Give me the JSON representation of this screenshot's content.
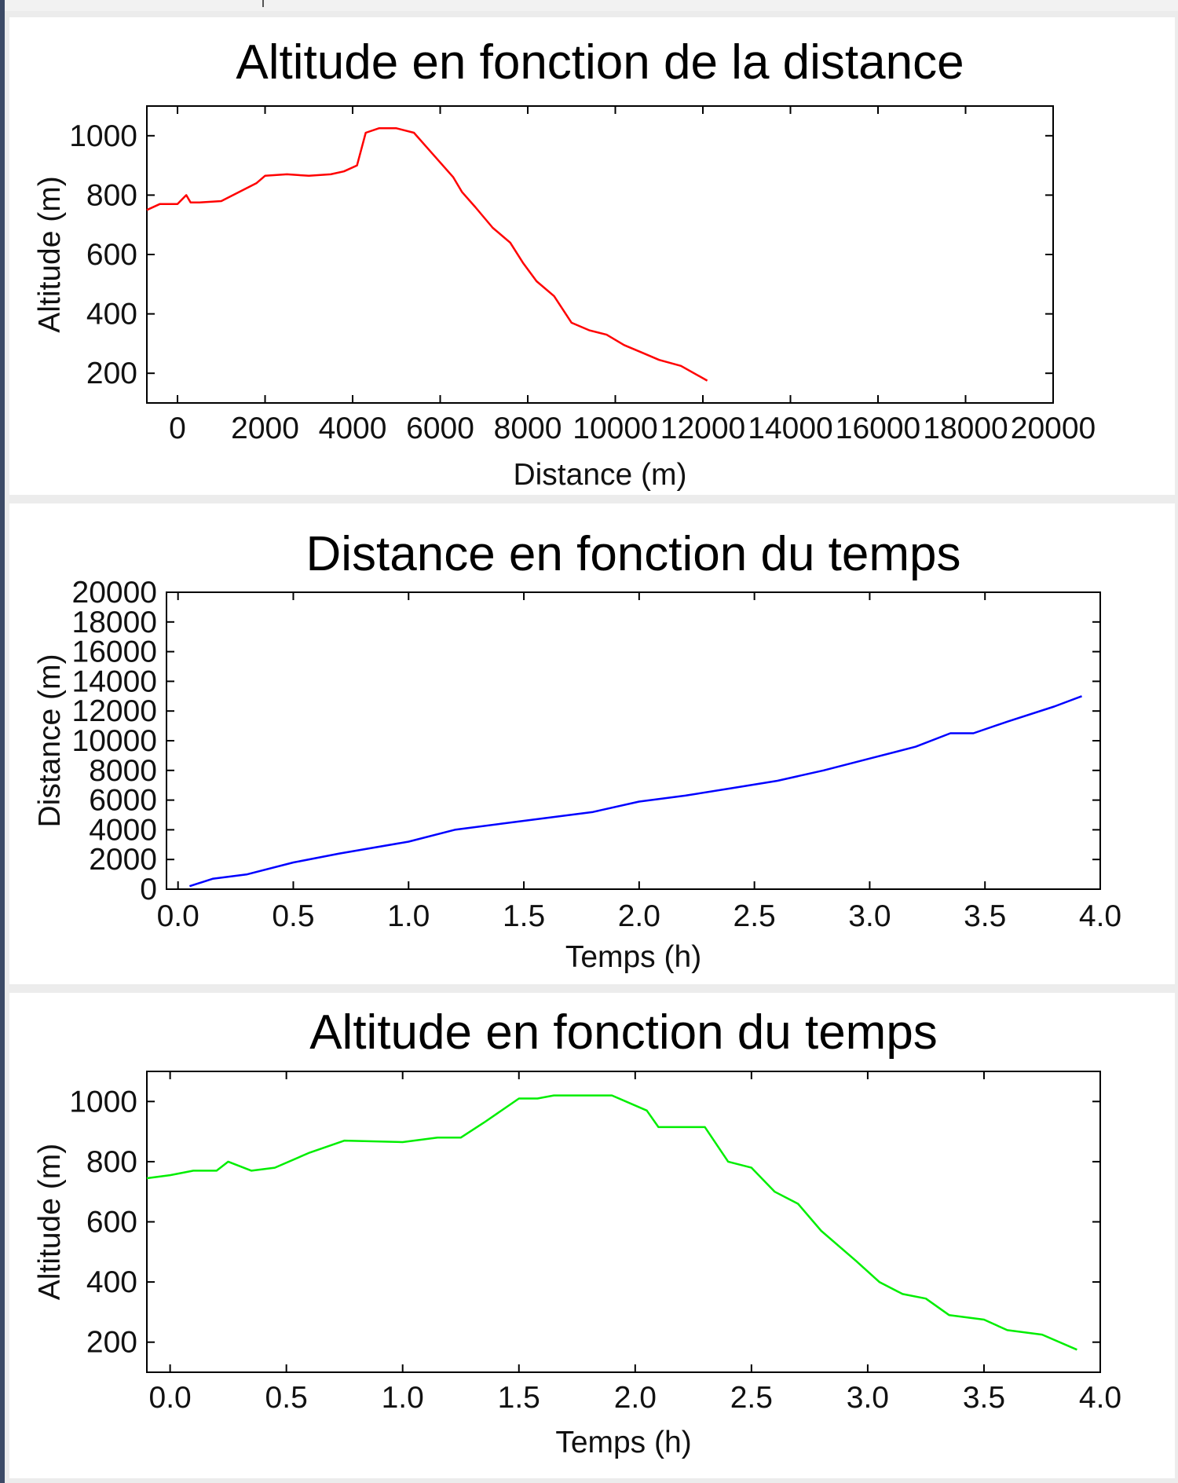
{
  "chart_data": [
    {
      "type": "line",
      "title": "Altitude en fonction de la distance",
      "xlabel": "Distance (m)",
      "ylabel": "Altitude (m)",
      "xlim": [
        -700,
        20000
      ],
      "ylim": [
        100,
        1100
      ],
      "xticks": [
        0,
        2000,
        4000,
        6000,
        8000,
        10000,
        12000,
        14000,
        16000,
        18000,
        20000
      ],
      "xtick_labels": [
        "0",
        "2000",
        "4000",
        "6000",
        "8000",
        "10000",
        "12000",
        "14000",
        "16000",
        "18000",
        "20000"
      ],
      "yticks": [
        200,
        400,
        600,
        800,
        1000
      ],
      "ytick_labels": [
        "200",
        "400",
        "600",
        "800",
        "1000"
      ],
      "grid": false,
      "color": "#ff0000",
      "series": [
        {
          "x": [
            -700,
            -400,
            0,
            200,
            300,
            500,
            1000,
            1400,
            1800,
            2000,
            2500,
            3000,
            3500,
            3800,
            4100,
            4300,
            4600,
            5000,
            5400,
            5700,
            6000,
            6300,
            6500,
            6800,
            7200,
            7600,
            7900,
            8200,
            8600,
            9000,
            9400,
            9800,
            10200,
            10600,
            11000,
            11500,
            12100
          ],
          "y": [
            750,
            770,
            770,
            800,
            775,
            775,
            780,
            810,
            840,
            865,
            870,
            865,
            870,
            880,
            900,
            1010,
            1025,
            1025,
            1010,
            960,
            910,
            860,
            810,
            760,
            690,
            640,
            570,
            510,
            460,
            370,
            345,
            330,
            295,
            270,
            245,
            225,
            175
          ]
        }
      ]
    },
    {
      "type": "line",
      "title": "Distance en fonction du temps",
      "xlabel": "Temps (h)",
      "ylabel": "Distance (m)",
      "xlim": [
        -0.05,
        4.0
      ],
      "ylim": [
        0,
        20000
      ],
      "xticks": [
        0.0,
        0.5,
        1.0,
        1.5,
        2.0,
        2.5,
        3.0,
        3.5,
        4.0
      ],
      "xtick_labels": [
        "0.0",
        "0.5",
        "1.0",
        "1.5",
        "2.0",
        "2.5",
        "3.0",
        "3.5",
        "4.0"
      ],
      "yticks": [
        0,
        2000,
        4000,
        6000,
        8000,
        10000,
        12000,
        14000,
        16000,
        18000,
        20000
      ],
      "ytick_labels": [
        "0",
        "2000",
        "4000",
        "6000",
        "8000",
        "10000",
        "12000",
        "14000",
        "16000",
        "18000",
        "20000"
      ],
      "grid": false,
      "color": "#0000ff",
      "series": [
        {
          "x": [
            0.05,
            0.15,
            0.3,
            0.5,
            0.7,
            1.0,
            1.2,
            1.4,
            1.6,
            1.8,
            2.0,
            2.2,
            2.4,
            2.6,
            2.8,
            3.0,
            3.2,
            3.35,
            3.45,
            3.6,
            3.8,
            3.92
          ],
          "y": [
            200,
            700,
            1000,
            1800,
            2400,
            3200,
            4000,
            4400,
            4800,
            5200,
            5900,
            6300,
            6800,
            7300,
            8000,
            8800,
            9600,
            10500,
            10500,
            11300,
            12300,
            13000
          ]
        }
      ]
    },
    {
      "type": "line",
      "title": "Altitude en fonction du temps",
      "xlabel": "Temps (h)",
      "ylabel": "Altitude (m)",
      "xlim": [
        -0.1,
        4.0
      ],
      "ylim": [
        100,
        1100
      ],
      "xticks": [
        0.0,
        0.5,
        1.0,
        1.5,
        2.0,
        2.5,
        3.0,
        3.5,
        4.0
      ],
      "xtick_labels": [
        "0.0",
        "0.5",
        "1.0",
        "1.5",
        "2.0",
        "2.5",
        "3.0",
        "3.5",
        "4.0"
      ],
      "yticks": [
        200,
        400,
        600,
        800,
        1000
      ],
      "ytick_labels": [
        "200",
        "400",
        "600",
        "800",
        "1000"
      ],
      "grid": false,
      "color": "#00ee00",
      "series": [
        {
          "x": [
            -0.1,
            0.0,
            0.1,
            0.2,
            0.25,
            0.35,
            0.45,
            0.6,
            0.75,
            1.0,
            1.15,
            1.25,
            1.35,
            1.5,
            1.58,
            1.65,
            1.9,
            2.05,
            2.1,
            2.2,
            2.3,
            2.4,
            2.5,
            2.6,
            2.7,
            2.8,
            2.95,
            3.05,
            3.15,
            3.25,
            3.35,
            3.5,
            3.6,
            3.75,
            3.9
          ],
          "y": [
            745,
            755,
            770,
            770,
            800,
            770,
            780,
            830,
            870,
            865,
            880,
            880,
            930,
            1010,
            1010,
            1020,
            1020,
            970,
            915,
            915,
            915,
            800,
            780,
            700,
            660,
            570,
            470,
            400,
            360,
            345,
            290,
            275,
            240,
            225,
            175
          ]
        }
      ]
    }
  ]
}
